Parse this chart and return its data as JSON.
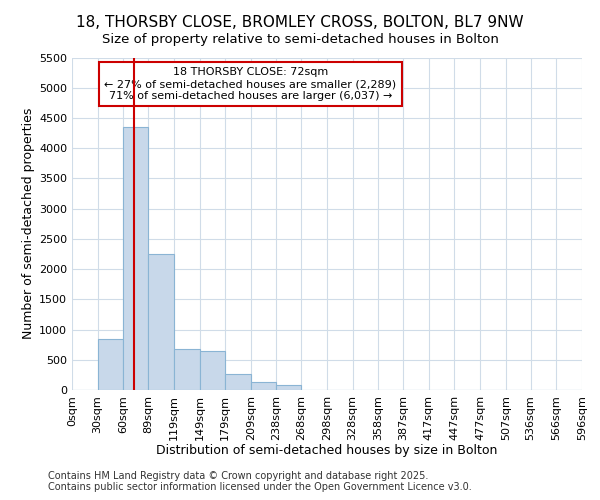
{
  "title_line1": "18, THORSBY CLOSE, BROMLEY CROSS, BOLTON, BL7 9NW",
  "title_line2": "Size of property relative to semi-detached houses in Bolton",
  "xlabel": "Distribution of semi-detached houses by size in Bolton",
  "ylabel": "Number of semi-detached properties",
  "bar_color": "#c8d8ea",
  "bar_edgecolor": "#8ab4d4",
  "annotation_title": "18 THORSBY CLOSE: 72sqm",
  "annotation_line1": "← 27% of semi-detached houses are smaller (2,289)",
  "annotation_line2": "71% of semi-detached houses are larger (6,037) →",
  "property_sqm": 72,
  "red_line_color": "#cc0000",
  "background_color": "#ffffff",
  "grid_color": "#d0dce8",
  "categories": [
    "0sqm",
    "30sqm",
    "60sqm",
    "89sqm",
    "119sqm",
    "149sqm",
    "179sqm",
    "209sqm",
    "238sqm",
    "268sqm",
    "298sqm",
    "328sqm",
    "358sqm",
    "387sqm",
    "417sqm",
    "447sqm",
    "477sqm",
    "507sqm",
    "536sqm",
    "566sqm",
    "596sqm"
  ],
  "bin_edges": [
    0,
    30,
    60,
    89,
    119,
    149,
    179,
    209,
    238,
    268,
    298,
    328,
    358,
    387,
    417,
    447,
    477,
    507,
    536,
    566,
    596
  ],
  "values": [
    0,
    850,
    4350,
    2250,
    680,
    650,
    260,
    130,
    75,
    0,
    0,
    0,
    0,
    0,
    0,
    0,
    0,
    0,
    0,
    0,
    0
  ],
  "ylim": [
    0,
    5500
  ],
  "yticks": [
    0,
    500,
    1000,
    1500,
    2000,
    2500,
    3000,
    3500,
    4000,
    4500,
    5000,
    5500
  ],
  "footer_line1": "Contains HM Land Registry data © Crown copyright and database right 2025.",
  "footer_line2": "Contains public sector information licensed under the Open Government Licence v3.0.",
  "annotation_box_facecolor": "#ffffff",
  "annotation_box_edgecolor": "#cc0000",
  "title_fontsize": 11,
  "subtitle_fontsize": 9.5,
  "axis_label_fontsize": 9,
  "tick_fontsize": 8,
  "annotation_fontsize": 8,
  "footer_fontsize": 7
}
